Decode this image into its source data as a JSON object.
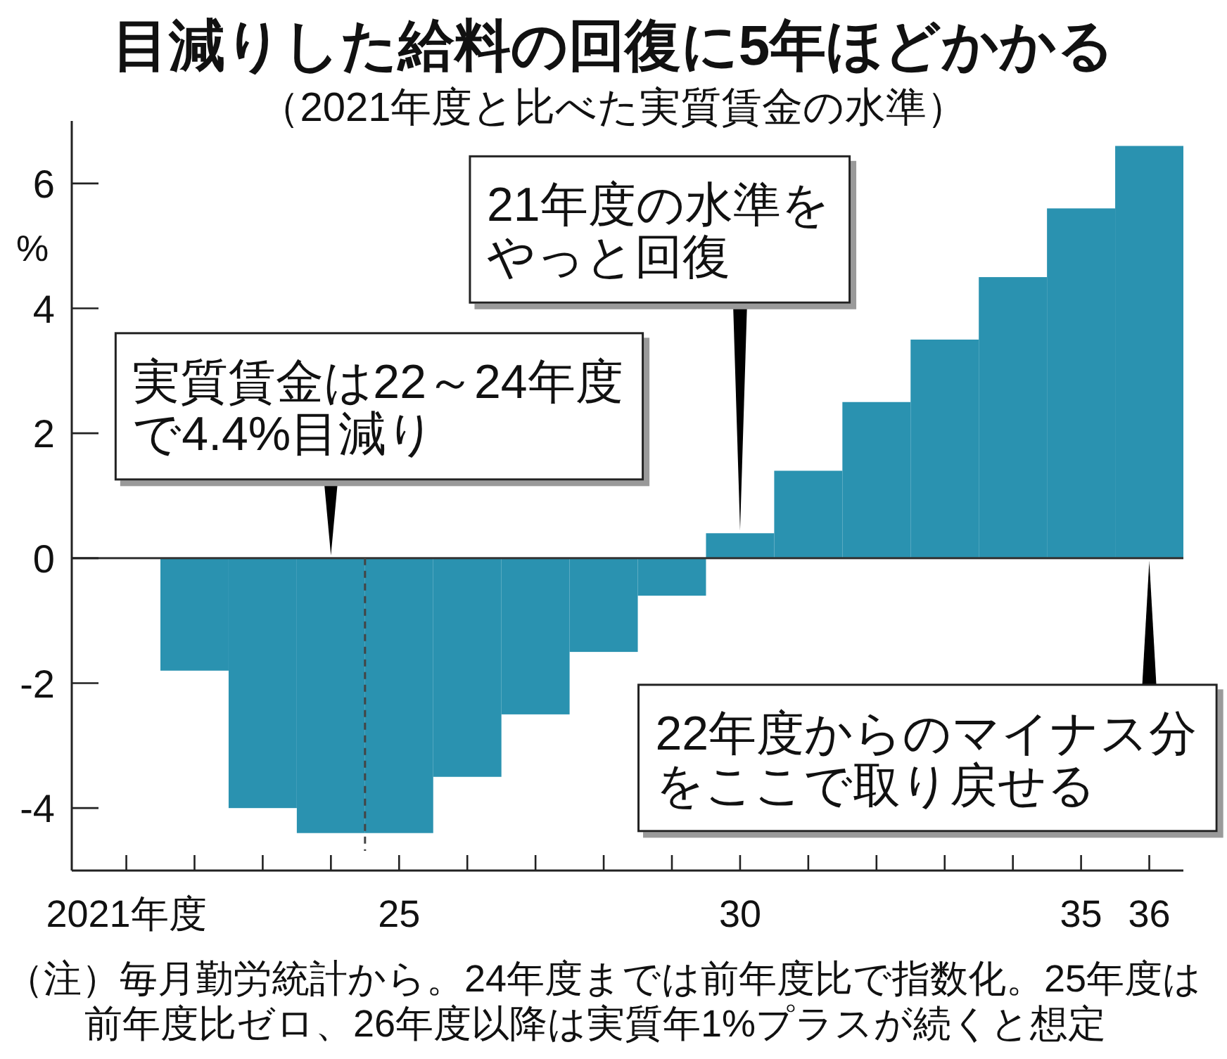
{
  "chart_data": {
    "type": "bar",
    "title": "目減りした給料の回復に5年ほどかかる",
    "subtitle": "（2021年度と比べた実質賃金の水準）",
    "ylabel": "%",
    "x": [
      2022,
      2023,
      2024,
      2025,
      2026,
      2027,
      2028,
      2029,
      2030,
      2031,
      2032,
      2033,
      2034,
      2035,
      2036
    ],
    "values": [
      -1.8,
      -4.0,
      -4.4,
      -4.4,
      -3.5,
      -2.5,
      -1.5,
      -0.6,
      0.4,
      1.4,
      2.5,
      3.5,
      4.5,
      5.6,
      6.6
    ],
    "color": "#2a92b0",
    "xlim": [
      2020.2,
      2036.5
    ],
    "xticks": [
      {
        "value": 2021,
        "label": "2021年度"
      },
      {
        "value": 2022,
        "label": null
      },
      {
        "value": 2023,
        "label": null
      },
      {
        "value": 2024,
        "label": null
      },
      {
        "value": 2025,
        "label": "25"
      },
      {
        "value": 2026,
        "label": null
      },
      {
        "value": 2027,
        "label": null
      },
      {
        "value": 2028,
        "label": null
      },
      {
        "value": 2029,
        "label": null
      },
      {
        "value": 2030,
        "label": "30"
      },
      {
        "value": 2031,
        "label": null
      },
      {
        "value": 2032,
        "label": null
      },
      {
        "value": 2033,
        "label": null
      },
      {
        "value": 2034,
        "label": null
      },
      {
        "value": 2035,
        "label": "35"
      },
      {
        "value": 2036,
        "label": "36"
      }
    ],
    "ylim": [
      -5,
      7
    ],
    "yticks": [
      -4,
      -2,
      0,
      2,
      4,
      6
    ],
    "ref_lines": [
      {
        "axis": "y",
        "value": 0,
        "color": "#333333",
        "line_style": "solid"
      },
      {
        "axis": "x",
        "value": 2024.5,
        "color": "#444444",
        "line_style": "dashed"
      }
    ],
    "annotations": [
      {
        "text": "実質賃金は22～24年度で4.4%目減り",
        "x": 2024,
        "y": 0
      },
      {
        "text": "21年度の水準をやっと回復",
        "x": 2030,
        "y": 0.4
      },
      {
        "text": "22年度からのマイナス分をここで取り戻せる",
        "x": 2036,
        "y": 0
      },
      "（注）毎月勤労統計から。24年度までは前年度比で指数化。25年度は前年度比ゼロ、26年度以降は実質年1%プラスが続くと想定"
    ]
  }
}
